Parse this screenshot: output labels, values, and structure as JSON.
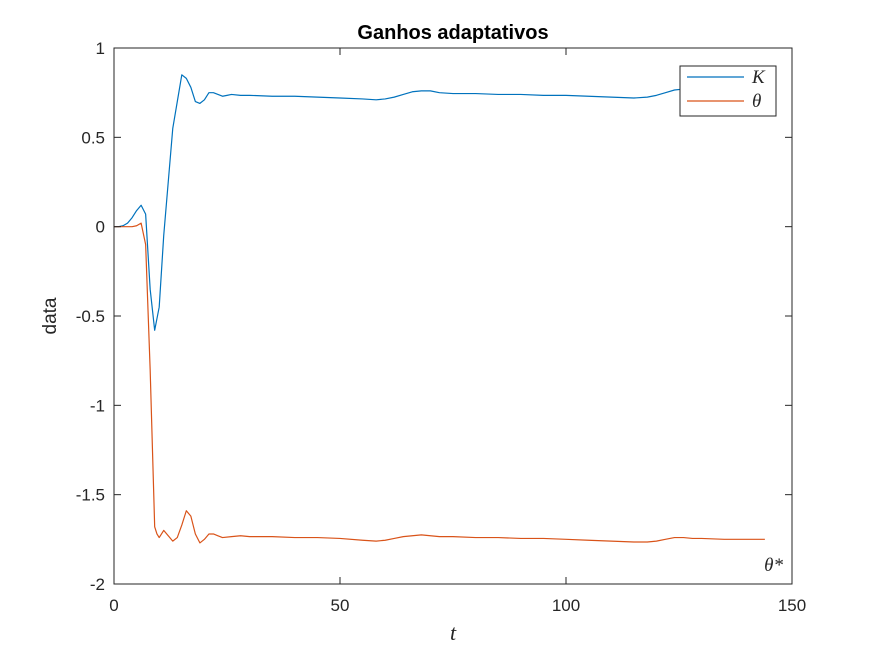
{
  "chart_data": {
    "type": "line",
    "title": "Ganhos adaptativos",
    "xlabel": "t",
    "ylabel": "data",
    "xlim": [
      0,
      150
    ],
    "ylim": [
      -2,
      1
    ],
    "xticks": [
      0,
      50,
      100,
      150
    ],
    "yticks": [
      -2,
      -1.5,
      -1,
      -0.5,
      0,
      0.5,
      1
    ],
    "grid": false,
    "legend_position": "top-right",
    "annotation": "θ*",
    "series": [
      {
        "name": "K",
        "color": "#0072BD",
        "x": [
          0,
          1,
          2,
          3,
          4,
          5,
          6,
          7,
          8,
          9,
          10,
          11,
          12,
          13,
          14,
          15,
          16,
          17,
          18,
          19,
          20,
          21,
          22,
          23,
          24,
          25,
          26,
          28,
          30,
          35,
          40,
          45,
          50,
          55,
          58,
          60,
          62,
          64,
          66,
          68,
          70,
          72,
          75,
          80,
          85,
          90,
          95,
          100,
          105,
          110,
          115,
          118,
          120,
          122,
          124,
          126,
          128,
          130,
          135,
          140,
          144
        ],
        "y": [
          0,
          0,
          0.005,
          0.02,
          0.05,
          0.09,
          0.12,
          0.07,
          -0.35,
          -0.58,
          -0.45,
          -0.05,
          0.25,
          0.55,
          0.7,
          0.85,
          0.83,
          0.78,
          0.7,
          0.69,
          0.71,
          0.75,
          0.75,
          0.74,
          0.73,
          0.735,
          0.74,
          0.735,
          0.735,
          0.73,
          0.73,
          0.725,
          0.72,
          0.715,
          0.71,
          0.715,
          0.725,
          0.74,
          0.755,
          0.76,
          0.76,
          0.75,
          0.745,
          0.745,
          0.74,
          0.74,
          0.735,
          0.735,
          0.73,
          0.725,
          0.72,
          0.725,
          0.735,
          0.75,
          0.765,
          0.77,
          0.77,
          0.765,
          0.755,
          0.75,
          0.75
        ]
      },
      {
        "name": "θ",
        "color": "#D95319",
        "x": [
          0,
          2,
          4,
          5,
          6,
          7,
          8,
          9,
          9.5,
          10,
          11,
          12,
          13,
          14,
          15,
          16,
          17,
          18,
          19,
          20,
          21,
          22,
          23,
          24,
          26,
          28,
          30,
          35,
          40,
          45,
          50,
          55,
          58,
          60,
          62,
          64,
          66,
          68,
          70,
          72,
          75,
          80,
          85,
          90,
          95,
          100,
          105,
          110,
          115,
          118,
          120,
          122,
          124,
          126,
          128,
          130,
          135,
          140,
          144
        ],
        "y": [
          0,
          0,
          0,
          0.005,
          0.02,
          -0.1,
          -0.8,
          -1.68,
          -1.72,
          -1.74,
          -1.7,
          -1.73,
          -1.76,
          -1.74,
          -1.67,
          -1.59,
          -1.62,
          -1.72,
          -1.77,
          -1.75,
          -1.72,
          -1.72,
          -1.73,
          -1.74,
          -1.735,
          -1.73,
          -1.735,
          -1.735,
          -1.74,
          -1.74,
          -1.745,
          -1.755,
          -1.76,
          -1.755,
          -1.745,
          -1.735,
          -1.73,
          -1.725,
          -1.73,
          -1.735,
          -1.735,
          -1.74,
          -1.74,
          -1.745,
          -1.745,
          -1.75,
          -1.755,
          -1.76,
          -1.765,
          -1.765,
          -1.76,
          -1.75,
          -1.74,
          -1.74,
          -1.745,
          -1.745,
          -1.75,
          -1.75,
          -1.75
        ]
      }
    ]
  }
}
